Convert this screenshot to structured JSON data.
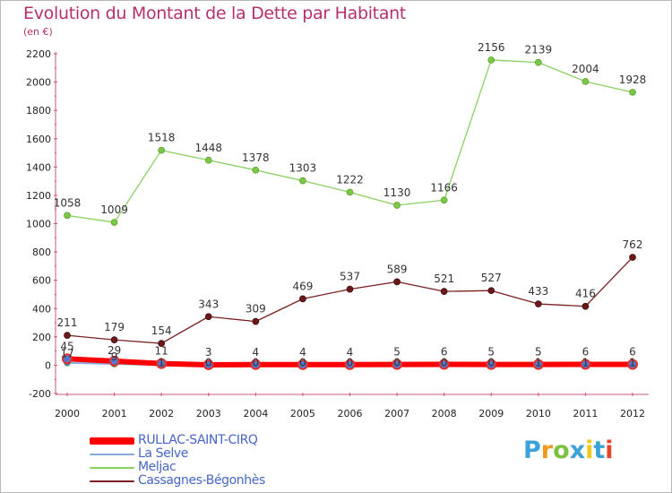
{
  "chart": {
    "title": "Evolution du Montant de la Dette par Habitant",
    "unit_label": "(en €)"
  },
  "chart_data": {
    "type": "line",
    "title": "Evolution du Montant de la Dette par Habitant",
    "subtitle": "(en €)",
    "x": [
      "2000",
      "2001",
      "2002",
      "2003",
      "2004",
      "2005",
      "2006",
      "2007",
      "2008",
      "2009",
      "2010",
      "2011",
      "2012"
    ],
    "ylim": [
      -200,
      2200
    ],
    "yticks": [
      -200,
      0,
      200,
      400,
      600,
      800,
      1000,
      1200,
      1400,
      1600,
      1800,
      2000,
      2200
    ],
    "grid": false,
    "legend_position": "bottom-left",
    "series": [
      {
        "name": "RULLAC-SAINT-CIRQ",
        "color": "#ff0000",
        "marker_color": "#e03030",
        "values": [
          45,
          29,
          11,
          3,
          4,
          4,
          4,
          5,
          6,
          5,
          5,
          6,
          6
        ]
      },
      {
        "name": "La Selve",
        "color": "#88aadd",
        "marker_color": "#4a7ad0",
        "values": [
          17,
          9,
          1,
          0,
          0,
          0,
          0,
          0,
          0,
          0,
          1,
          1,
          1
        ]
      },
      {
        "name": "Meljac",
        "color": "#88d060",
        "marker_color": "#7ac843",
        "values": [
          1058,
          1009,
          1518,
          1448,
          1378,
          1303,
          1222,
          1130,
          1166,
          2156,
          2139,
          2004,
          1928
        ]
      },
      {
        "name": "Cassagnes-Bégonhès",
        "color": "#7a2020",
        "marker_color": "#6b1818",
        "values": [
          211,
          179,
          154,
          343,
          309,
          469,
          537,
          589,
          521,
          527,
          433,
          416,
          762
        ]
      }
    ]
  },
  "brand": {
    "letters": [
      "P",
      "r",
      "o",
      "x",
      "i",
      "t",
      "i"
    ],
    "colors": [
      "#3ba3d8",
      "#f29a1e",
      "#7cc242",
      "#3ba3d8",
      "#f2c81e",
      "#3ba3d8",
      "#e6432d"
    ]
  }
}
